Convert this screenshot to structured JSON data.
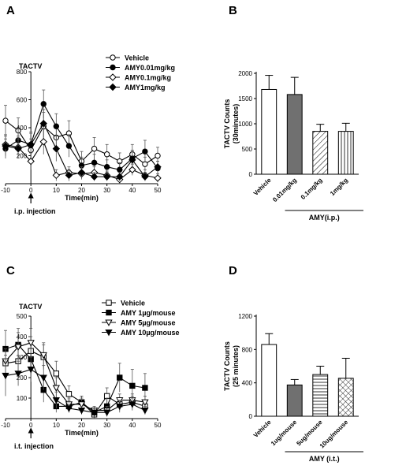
{
  "panels": {
    "A": {
      "label": "A"
    },
    "B": {
      "label": "B"
    },
    "C": {
      "label": "C"
    },
    "D": {
      "label": "D"
    }
  },
  "chart_data": [
    {
      "panel": "A",
      "type": "line",
      "ylabel": "TACTV",
      "xlabel": "Time(min)",
      "xlim": [
        -10,
        50
      ],
      "ylim": [
        0,
        800
      ],
      "xticks": [
        -10,
        0,
        10,
        20,
        30,
        40,
        50
      ],
      "yticks": [
        200,
        400,
        600,
        800
      ],
      "annotation": "i.p. injection",
      "annotation_x": 0,
      "legend_position": "top-right",
      "x": [
        -10,
        -5,
        0,
        5,
        10,
        15,
        20,
        25,
        30,
        35,
        40,
        45,
        50
      ],
      "series": [
        {
          "name": "Vehicle",
          "marker": "open-circle",
          "values": [
            450,
            380,
            240,
            410,
            330,
            360,
            160,
            250,
            210,
            160,
            210,
            140,
            200
          ],
          "errors": [
            110,
            90,
            80,
            100,
            90,
            90,
            70,
            80,
            70,
            60,
            70,
            50,
            60
          ]
        },
        {
          "name": "AMY0.01mg/kg",
          "marker": "filled-circle",
          "values": [
            250,
            310,
            280,
            570,
            410,
            270,
            130,
            150,
            120,
            100,
            180,
            230,
            110
          ],
          "errors": [
            70,
            80,
            90,
            100,
            90,
            80,
            60,
            60,
            50,
            50,
            60,
            80,
            50
          ]
        },
        {
          "name": "AMY0.1mg/kg",
          "marker": "open-diamond",
          "values": [
            280,
            260,
            160,
            300,
            60,
            80,
            70,
            80,
            60,
            30,
            100,
            60,
            40
          ],
          "errors": [
            70,
            80,
            60,
            90,
            40,
            40,
            40,
            40,
            30,
            30,
            40,
            40,
            30
          ]
        },
        {
          "name": "AMY1mg/kg",
          "marker": "filled-diamond",
          "values": [
            270,
            250,
            280,
            430,
            250,
            60,
            80,
            50,
            50,
            50,
            170,
            50,
            120
          ],
          "errors": [
            70,
            70,
            80,
            100,
            90,
            40,
            40,
            30,
            30,
            30,
            60,
            30,
            40
          ]
        }
      ]
    },
    {
      "panel": "B",
      "type": "bar",
      "ylabel": "TACTV Counts (30minutes)",
      "ylabel_lines": [
        "TACTV Counts",
        "(30minutes)"
      ],
      "ylim": [
        0,
        2000
      ],
      "yticks": [
        0,
        500,
        1000,
        1500,
        2000
      ],
      "categories": [
        "Vehicle",
        "0.01mg/kg",
        "0.1mg/kg",
        "1mg/kg"
      ],
      "values": [
        1680,
        1580,
        850,
        850
      ],
      "errors": [
        280,
        340,
        140,
        160
      ],
      "fills": [
        "white",
        "gray",
        "diagonal",
        "vertical"
      ],
      "group_label": "AMY(i.p.)"
    },
    {
      "panel": "C",
      "type": "line",
      "ylabel": "TACTV",
      "xlabel": "Time(min)",
      "xlim": [
        -10,
        50
      ],
      "ylim": [
        0,
        500
      ],
      "xticks": [
        -10,
        0,
        10,
        20,
        30,
        40,
        50
      ],
      "yticks": [
        100,
        200,
        300,
        400,
        500
      ],
      "annotation": "i.t. injection",
      "annotation_x": 0,
      "legend_position": "top-right",
      "x": [
        -10,
        -5,
        0,
        5,
        10,
        15,
        20,
        25,
        30,
        35,
        40,
        45
      ],
      "series": [
        {
          "name": "Vehicle",
          "marker": "open-square",
          "values": [
            270,
            280,
            330,
            300,
            220,
            120,
            80,
            20,
            110,
            70,
            80,
            60
          ],
          "errors": [
            60,
            60,
            70,
            60,
            60,
            40,
            30,
            20,
            40,
            30,
            30,
            20
          ]
        },
        {
          "name": "AMY 1µg/mouse",
          "marker": "filled-square",
          "values": [
            340,
            360,
            290,
            140,
            60,
            60,
            80,
            30,
            60,
            200,
            160,
            150
          ],
          "errors": [
            90,
            80,
            80,
            60,
            30,
            30,
            30,
            20,
            40,
            70,
            80,
            70
          ]
        },
        {
          "name": "AMY 5µg/mouse",
          "marker": "open-triangle-down",
          "values": [
            280,
            350,
            370,
            310,
            150,
            70,
            70,
            40,
            40,
            90,
            90,
            80
          ],
          "errors": [
            60,
            70,
            70,
            60,
            50,
            30,
            30,
            20,
            20,
            30,
            30,
            30
          ]
        },
        {
          "name": "AMY 10µg/mouse",
          "marker": "filled-triangle-down",
          "values": [
            210,
            220,
            240,
            200,
            90,
            50,
            40,
            30,
            30,
            60,
            70,
            40
          ],
          "errors": [
            100,
            60,
            60,
            60,
            40,
            20,
            20,
            20,
            20,
            30,
            30,
            20
          ]
        }
      ]
    },
    {
      "panel": "D",
      "type": "bar",
      "ylabel": "TACTV Counts (25 minutes)",
      "ylabel_lines": [
        "TACTV Counts",
        "(25 minutes)"
      ],
      "ylim": [
        0,
        1200
      ],
      "yticks": [
        0,
        400,
        800,
        1200
      ],
      "categories": [
        "Vehicle",
        "1ug/mouse",
        "5ug/mouse",
        "10ug/mouse"
      ],
      "values": [
        860,
        375,
        500,
        455
      ],
      "errors": [
        130,
        65,
        100,
        240
      ],
      "fills": [
        "white",
        "gray",
        "horizontal",
        "crosshatch"
      ],
      "group_label": "AMY (i.t.)"
    }
  ]
}
